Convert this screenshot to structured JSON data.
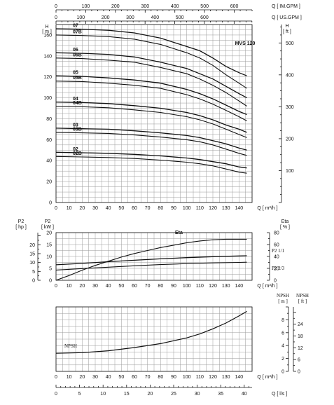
{
  "chart_data": [
    {
      "type": "line",
      "title": "MVS 120",
      "top_axes": [
        {
          "label": "Q [ IM.GPM ]",
          "ticks": [
            0,
            100,
            200,
            300,
            400,
            500,
            600
          ]
        },
        {
          "label": "Q [ US.GPM ]",
          "ticks": [
            0,
            100,
            200,
            300,
            400,
            500,
            600
          ]
        }
      ],
      "xlabel": "Q [ m³/h ]",
      "xlim": [
        0,
        150
      ],
      "x_ticks": [
        0,
        10,
        20,
        30,
        40,
        50,
        60,
        70,
        80,
        90,
        100,
        110,
        120,
        130,
        140
      ],
      "ylabel_left": "H [ m ]",
      "ylim": [
        0,
        170
      ],
      "y_ticks": [
        0,
        20,
        40,
        60,
        80,
        100,
        120,
        140,
        160
      ],
      "ylabel_right": "H [ ft ]",
      "y2_ticks": [
        100,
        200,
        300,
        400,
        500
      ],
      "x": [
        0,
        20,
        40,
        60,
        80,
        100,
        110,
        120,
        130,
        140,
        146
      ],
      "series": [
        {
          "name": "07",
          "values": [
            166,
            165.5,
            164.5,
            162,
            157,
            149,
            145,
            138,
            130,
            124,
            121
          ]
        },
        {
          "name": "07B",
          "values": [
            160,
            159.5,
            158.5,
            156,
            151,
            143,
            138,
            131,
            122,
            114,
            109
          ]
        },
        {
          "name": "06",
          "values": [
            143,
            142.5,
            141.5,
            139,
            134,
            128,
            123,
            118,
            111,
            104,
            100
          ]
        },
        {
          "name": "06B",
          "values": [
            138,
            137.5,
            136,
            134,
            129,
            123,
            118,
            112,
            105,
            97,
            92
          ]
        },
        {
          "name": "05",
          "values": [
            121,
            120.5,
            119,
            117,
            114,
            108,
            104,
            99,
            93,
            87,
            84
          ]
        },
        {
          "name": "05B",
          "values": [
            116,
            115.5,
            114,
            112,
            109,
            103,
            99,
            94,
            88,
            82,
            78
          ]
        },
        {
          "name": "04",
          "values": [
            96,
            95.5,
            94.5,
            92.5,
            90,
            86,
            83,
            79,
            74,
            70,
            67
          ]
        },
        {
          "name": "04B",
          "values": [
            92,
            91.5,
            90.5,
            88.5,
            86,
            82,
            79,
            75,
            70,
            65,
            62
          ]
        },
        {
          "name": "03",
          "values": [
            71,
            70.5,
            70,
            68.5,
            66.5,
            64,
            62,
            59,
            56,
            52,
            50
          ]
        },
        {
          "name": "03B",
          "values": [
            67,
            66.5,
            66,
            64.5,
            62.5,
            60,
            58,
            55,
            51,
            47,
            45
          ]
        },
        {
          "name": "02",
          "values": [
            48,
            47.5,
            47,
            46,
            44.5,
            42.5,
            41,
            39,
            37,
            34,
            33
          ]
        },
        {
          "name": "02B",
          "values": [
            44,
            43.5,
            43,
            42,
            40.5,
            38.5,
            37,
            35,
            32,
            29,
            28
          ]
        }
      ]
    },
    {
      "type": "line",
      "xlabel": "Q [ m³/h ]",
      "xlim": [
        0,
        150
      ],
      "x_ticks": [
        0,
        10,
        20,
        30,
        40,
        50,
        60,
        70,
        80,
        90,
        100,
        110,
        120,
        130,
        140
      ],
      "ylabel_hp": "P2 [ hp ]",
      "hp_ticks": [
        0,
        5,
        10,
        15,
        20
      ],
      "ylabel_kw": "P2 [ kW ]",
      "ylim": [
        0,
        20
      ],
      "y_ticks": [
        0,
        5,
        10,
        15,
        20
      ],
      "ylabel_right": "Eta [ % ]",
      "y2lim": [
        0,
        80
      ],
      "y2_ticks": [
        0,
        20,
        40,
        60,
        80
      ],
      "x": [
        0,
        20,
        40,
        60,
        80,
        100,
        120,
        140,
        146
      ],
      "series": [
        {
          "name": "Eta",
          "axis": "right",
          "x": [
            0,
            10,
            20,
            30,
            40,
            50,
            60,
            70,
            80,
            90,
            100,
            110,
            120,
            130,
            140,
            146
          ],
          "values": [
            0,
            8,
            17,
            25,
            32,
            39,
            45,
            50,
            55,
            59,
            63,
            66,
            68,
            69,
            69,
            69
          ]
        },
        {
          "name": "P2 1/1",
          "axis": "left",
          "values": [
            6.5,
            7.1,
            7.8,
            8.4,
            9.0,
            9.5,
            9.9,
            10.2,
            10.3
          ]
        },
        {
          "name": "P2 2/3",
          "axis": "left",
          "values": [
            4.3,
            4.9,
            5.5,
            6.1,
            6.6,
            7.0,
            7.3,
            7.5,
            7.6
          ]
        }
      ]
    },
    {
      "type": "line",
      "xlabel": "Q [ m³/h ]",
      "xlim": [
        0,
        150
      ],
      "x_ticks": [
        0,
        10,
        20,
        30,
        40,
        50,
        60,
        70,
        80,
        90,
        100,
        110,
        120,
        130,
        140
      ],
      "ls_label": "Q [ l/s ]",
      "ls_ticks": [
        0,
        5,
        10,
        15,
        20,
        25,
        30,
        35,
        40
      ],
      "ylabel_left": "NPSH [ m ]",
      "ylim": [
        0,
        10
      ],
      "y_ticks": [
        0,
        2,
        4,
        6,
        8
      ],
      "ylabel_right": "NPSH [ ft ]",
      "y2_ticks": [
        0,
        6,
        12,
        18,
        24
      ],
      "x": [
        0,
        20,
        40,
        60,
        80,
        100,
        110,
        120,
        130,
        140,
        146
      ],
      "series": [
        {
          "name": "NPSH",
          "values": [
            2.8,
            2.9,
            3.2,
            3.7,
            4.3,
            5.2,
            5.8,
            6.6,
            7.5,
            8.6,
            9.3
          ]
        }
      ]
    }
  ]
}
